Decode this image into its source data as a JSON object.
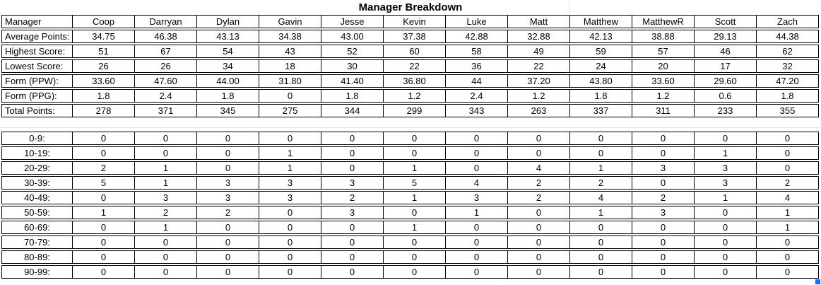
{
  "title": "Manager Breakdown",
  "colors": {
    "background": "#ffffff",
    "text": "#000000",
    "border": "#000000",
    "gridline": "#e3e3e3",
    "selection_handle": "#1a73e8"
  },
  "stats_table": {
    "header": [
      "Manager",
      "Coop",
      "Darryan",
      "Dylan",
      "Gavin",
      "Jesse",
      "Kevin",
      "Luke",
      "Matt",
      "Matthew",
      "MatthewR",
      "Scott",
      "Zach"
    ],
    "rows": [
      {
        "label": "Average Points:",
        "values": [
          "34.75",
          "46.38",
          "43.13",
          "34.38",
          "43.00",
          "37.38",
          "42.88",
          "32.88",
          "42.13",
          "38.88",
          "29.13",
          "44.38"
        ]
      },
      {
        "label": "Highest Score:",
        "values": [
          "51",
          "67",
          "54",
          "43",
          "52",
          "60",
          "58",
          "49",
          "59",
          "57",
          "46",
          "62"
        ]
      },
      {
        "label": "Lowest Score:",
        "values": [
          "26",
          "26",
          "34",
          "18",
          "30",
          "22",
          "36",
          "22",
          "24",
          "20",
          "17",
          "32"
        ]
      },
      {
        "label": "Form (PPW):",
        "values": [
          "33.60",
          "47.60",
          "44.00",
          "31.80",
          "41.40",
          "36.80",
          "44",
          "37.20",
          "43.80",
          "33.60",
          "29.60",
          "47.20"
        ]
      },
      {
        "label": "Form (PPG):",
        "values": [
          "1.8",
          "2.4",
          "1.8",
          "0",
          "1.8",
          "1.2",
          "2.4",
          "1.2",
          "1.8",
          "1.2",
          "0.6",
          "1.8"
        ]
      },
      {
        "label": "Total Points:",
        "values": [
          "278",
          "371",
          "345",
          "275",
          "344",
          "299",
          "343",
          "263",
          "337",
          "311",
          "233",
          "355"
        ]
      }
    ]
  },
  "distribution_table": {
    "rows": [
      {
        "label": "0-9:",
        "values": [
          "0",
          "0",
          "0",
          "0",
          "0",
          "0",
          "0",
          "0",
          "0",
          "0",
          "0",
          "0"
        ]
      },
      {
        "label": "10-19:",
        "values": [
          "0",
          "0",
          "0",
          "1",
          "0",
          "0",
          "0",
          "0",
          "0",
          "0",
          "1",
          "0"
        ]
      },
      {
        "label": "20-29:",
        "values": [
          "2",
          "1",
          "0",
          "1",
          "0",
          "1",
          "0",
          "4",
          "1",
          "3",
          "3",
          "0"
        ]
      },
      {
        "label": "30-39:",
        "values": [
          "5",
          "1",
          "3",
          "3",
          "3",
          "5",
          "4",
          "2",
          "2",
          "0",
          "3",
          "2"
        ]
      },
      {
        "label": "40-49:",
        "values": [
          "0",
          "3",
          "3",
          "3",
          "2",
          "1",
          "3",
          "2",
          "4",
          "2",
          "1",
          "4"
        ]
      },
      {
        "label": "50-59:",
        "values": [
          "1",
          "2",
          "2",
          "0",
          "3",
          "0",
          "1",
          "0",
          "1",
          "3",
          "0",
          "1"
        ]
      },
      {
        "label": "60-69:",
        "values": [
          "0",
          "1",
          "0",
          "0",
          "0",
          "1",
          "0",
          "0",
          "0",
          "0",
          "0",
          "1"
        ]
      },
      {
        "label": "70-79:",
        "values": [
          "0",
          "0",
          "0",
          "0",
          "0",
          "0",
          "0",
          "0",
          "0",
          "0",
          "0",
          "0"
        ]
      },
      {
        "label": "80-89:",
        "values": [
          "0",
          "0",
          "0",
          "0",
          "0",
          "0",
          "0",
          "0",
          "0",
          "0",
          "0",
          "0"
        ]
      },
      {
        "label": "90-99:",
        "values": [
          "0",
          "0",
          "0",
          "0",
          "0",
          "0",
          "0",
          "0",
          "0",
          "0",
          "0",
          "0"
        ]
      }
    ]
  }
}
